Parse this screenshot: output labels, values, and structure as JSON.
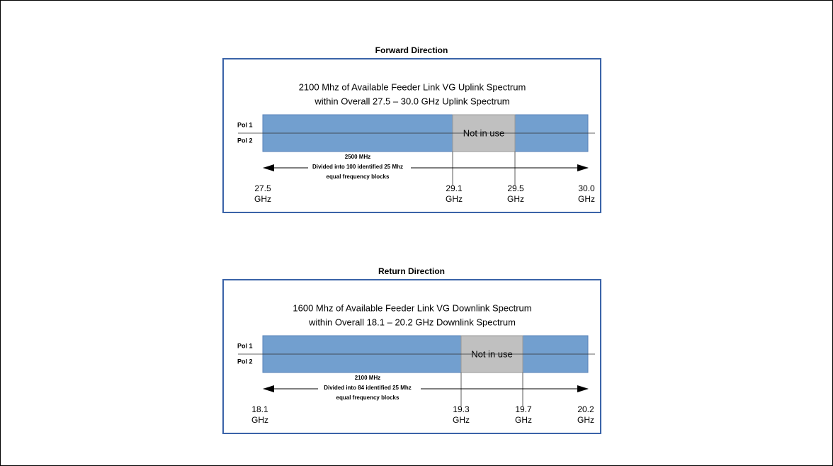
{
  "panels": [
    {
      "title": "Forward Direction",
      "heading": [
        "2100 Mhz of Available Feeder Link VG Uplink Spectrum",
        "within Overall 27.5 – 30.0 GHz Uplink Spectrum"
      ],
      "pol_labels": [
        "Pol 1",
        "Pol 2"
      ],
      "not_in_use": "Not in use",
      "span_text": [
        "2500 MHz",
        "Divided into 100 identified 25 Mhz",
        "equal frequency blocks"
      ],
      "frequencies": [
        {
          "value": "27.5",
          "unit": "GHz"
        },
        {
          "value": "29.1",
          "unit": "GHz"
        },
        {
          "value": "29.5",
          "unit": "GHz"
        },
        {
          "value": "30.0",
          "unit": "GHz"
        }
      ]
    },
    {
      "title": "Return Direction",
      "heading": [
        "1600 Mhz of Available Feeder Link VG Downlink Spectrum",
        "within Overall 18.1 – 20.2 GHz Downlink Spectrum"
      ],
      "pol_labels": [
        "Pol 1",
        "Pol 2"
      ],
      "not_in_use": "Not in use",
      "span_text": [
        "2100 MHz",
        "Divided into 84 identified 25 Mhz",
        "equal frequency blocks"
      ],
      "frequencies": [
        {
          "value": "18.1",
          "unit": "GHz"
        },
        {
          "value": "19.3",
          "unit": "GHz"
        },
        {
          "value": "19.7",
          "unit": "GHz"
        },
        {
          "value": "20.2",
          "unit": "GHz"
        }
      ]
    }
  ]
}
